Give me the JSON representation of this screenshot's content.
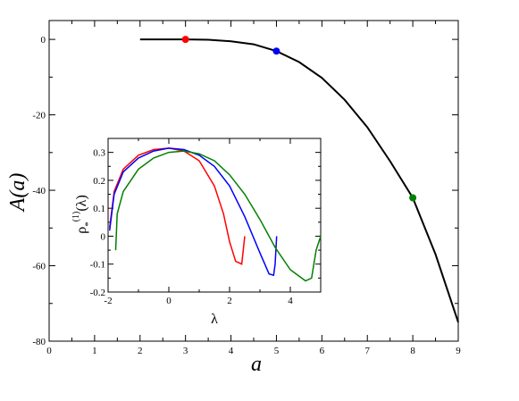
{
  "chart_data": [
    {
      "type": "line",
      "role": "main",
      "xlabel": "a",
      "ylabel": "A(a)",
      "xlim": [
        0,
        9
      ],
      "ylim": [
        -80,
        5
      ],
      "xticks": [
        "0",
        "1",
        "2",
        "3",
        "4",
        "5",
        "6",
        "7",
        "8",
        "9"
      ],
      "yticks": [
        "0",
        "-20",
        "-40",
        "-60",
        "-80"
      ],
      "series": [
        {
          "color": "#000000",
          "x": [
            2.0,
            2.5,
            3.0,
            3.5,
            4.0,
            4.5,
            5.0,
            5.5,
            6.0,
            6.5,
            7.0,
            7.5,
            8.0,
            8.5,
            9.0
          ],
          "y": [
            0.0,
            0.0,
            0.0,
            -0.1,
            -0.5,
            -1.3,
            -3.1,
            -6.0,
            -10.2,
            -16.0,
            -23.3,
            -32.3,
            -42.0,
            -57.0,
            -75.0
          ]
        }
      ],
      "markers": [
        {
          "x": 3.0,
          "y": 0.0,
          "color": "#ff0000"
        },
        {
          "x": 5.0,
          "y": -3.1,
          "color": "#0000ff"
        },
        {
          "x": 8.0,
          "y": -42.0,
          "color": "#008000"
        }
      ]
    },
    {
      "type": "line",
      "role": "inset",
      "xlabel": "λ",
      "ylabel": "ρ*(1)(λ)",
      "xlim": [
        -2,
        5
      ],
      "ylim": [
        -0.2,
        0.35
      ],
      "xticks": [
        "-2",
        "0",
        "2",
        "4"
      ],
      "yticks": [
        "0.3",
        "0.2",
        "0.1",
        "0",
        "-0.1",
        "-0.2"
      ],
      "series": [
        {
          "color": "#ff0000",
          "x": [
            -1.95,
            -1.8,
            -1.5,
            -1.0,
            -0.5,
            0.0,
            0.5,
            1.0,
            1.5,
            1.8,
            2.0,
            2.2,
            2.4,
            2.45,
            2.5
          ],
          "y": [
            0.03,
            0.16,
            0.24,
            0.29,
            0.31,
            0.315,
            0.305,
            0.27,
            0.18,
            0.08,
            -0.02,
            -0.09,
            -0.1,
            -0.05,
            0.0
          ]
        },
        {
          "color": "#0000ff",
          "x": [
            -1.95,
            -1.8,
            -1.5,
            -1.0,
            -0.5,
            0.0,
            0.5,
            1.0,
            1.5,
            2.0,
            2.5,
            3.0,
            3.3,
            3.45,
            3.5,
            3.55
          ],
          "y": [
            0.02,
            0.15,
            0.23,
            0.28,
            0.305,
            0.315,
            0.31,
            0.29,
            0.25,
            0.18,
            0.07,
            -0.06,
            -0.135,
            -0.14,
            -0.1,
            0.0
          ]
        },
        {
          "color": "#008000",
          "x": [
            -1.75,
            -1.7,
            -1.5,
            -1.0,
            -0.5,
            0.0,
            0.5,
            1.0,
            1.5,
            2.0,
            2.5,
            3.0,
            3.5,
            4.0,
            4.5,
            4.7,
            4.85,
            5.0
          ],
          "y": [
            -0.05,
            0.08,
            0.16,
            0.24,
            0.28,
            0.3,
            0.305,
            0.295,
            0.27,
            0.22,
            0.15,
            0.06,
            -0.04,
            -0.12,
            -0.16,
            -0.15,
            -0.05,
            0.0
          ]
        }
      ]
    }
  ]
}
